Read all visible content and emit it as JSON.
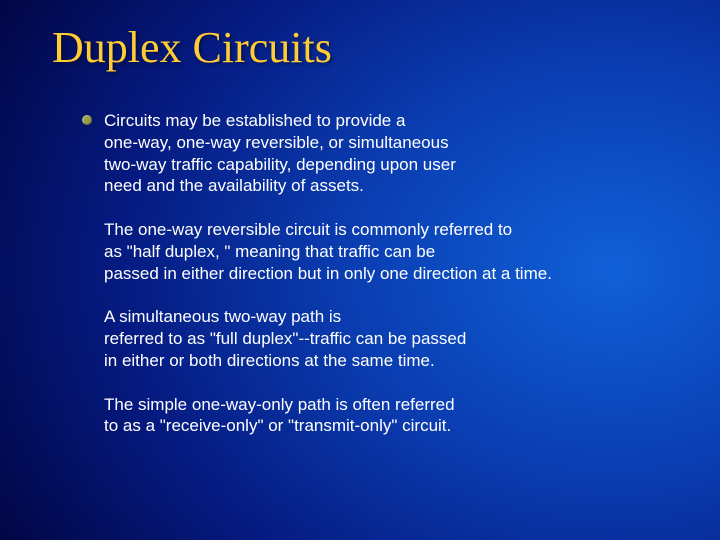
{
  "slide": {
    "title": "Duplex Circuits",
    "title_color": "#ffcc33",
    "title_font": "Times New Roman",
    "title_fontsize": 44,
    "body_color": "#ffffff",
    "body_fontsize": 17,
    "bullet_color": "#9aa04a",
    "background": {
      "type": "radial-gradient",
      "center": "85% 50%",
      "stops": [
        "#1060d8",
        "#0a3cb0",
        "#051a80",
        "#010440",
        "#000020"
      ]
    },
    "paragraphs": [
      {
        "bullet": true,
        "lines": [
          "Circuits may be established to provide a",
          "one-way, one-way reversible, or simultaneous",
          "two-way traffic capability, depending upon user",
          "need and the availability of assets."
        ]
      },
      {
        "bullet": false,
        "lines": [
          "The one-way reversible circuit is commonly referred to",
          "as \"half duplex, \" meaning that traffic can be",
          "passed in either direction but in only one direction at a time."
        ]
      },
      {
        "bullet": false,
        "lines": [
          "A simultaneous two-way path is",
          "referred to as \"full duplex\"--traffic can be passed",
          "in either or both directions at the same time."
        ]
      },
      {
        "bullet": false,
        "lines": [
          "The simple one-way-only path is often referred",
          "to as a \"receive-only\" or \"transmit-only\" circuit."
        ]
      }
    ]
  }
}
